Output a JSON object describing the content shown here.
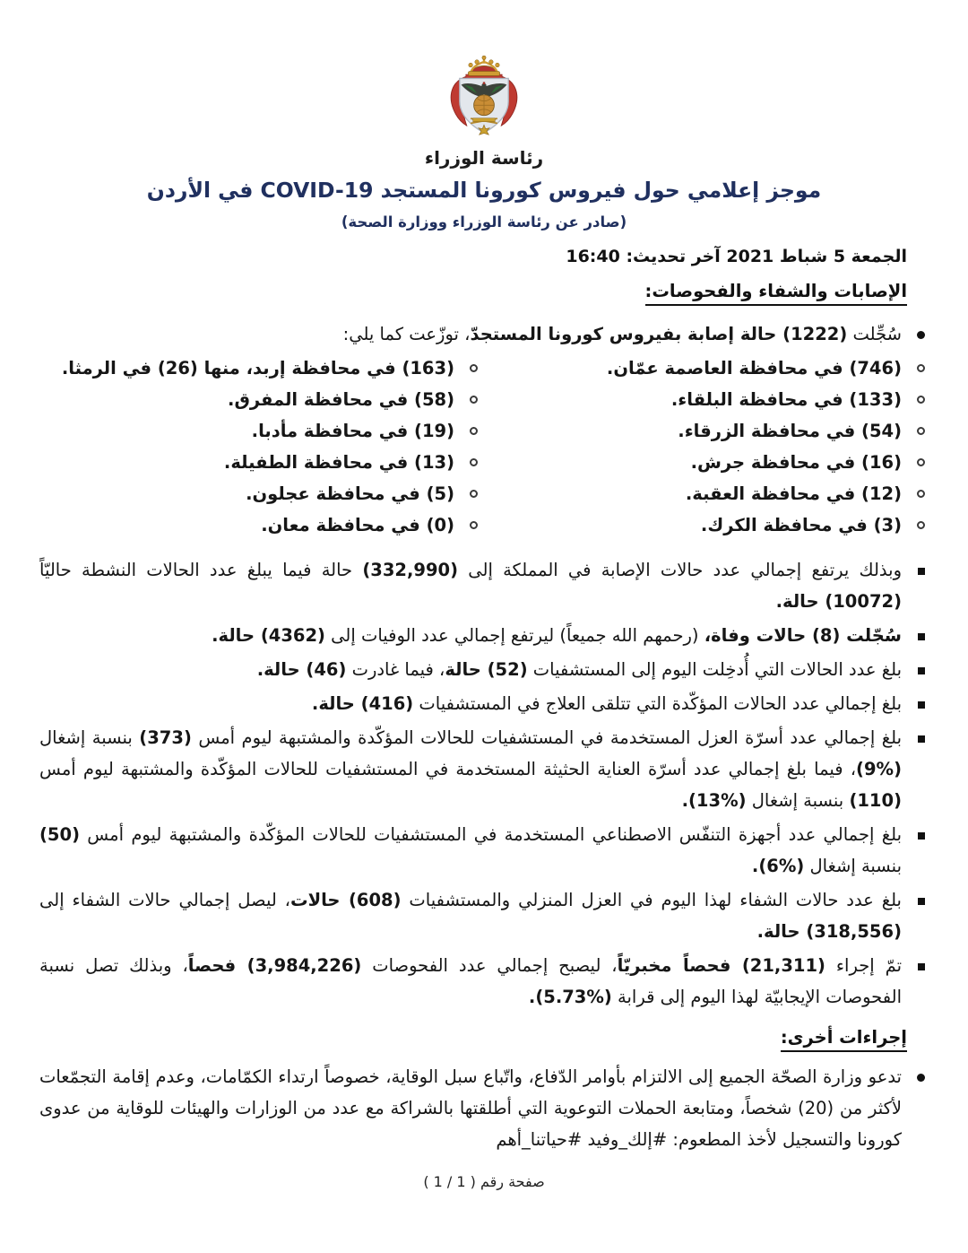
{
  "colors": {
    "title_navy": "#20305f",
    "text_black": "#161616",
    "crest_red": "#bf3a31",
    "crest_gold": "#cf9c33",
    "shield_silver": "#e3e7ec"
  },
  "header": {
    "logo_caption": "رئاسة الوزراء",
    "title": "موجز إعلامي حول فيروس كورونا المستجد COVID-19 في الأردن",
    "subtitle": "(صادر عن رئاسة الوزراء ووزارة الصحة)",
    "date_line": "الجمعة 5 شباط 2021 آخر تحديث: 16:40"
  },
  "cases_section": {
    "heading": "الإصابات والشفاء والفحوصات:",
    "intro": {
      "segments": [
        {
          "t": "سُجِّلت ",
          "b": false
        },
        {
          "t": "(1222) حالة إصابة بفيروس كورونا المستجدّ",
          "b": true
        },
        {
          "t": "، توزّعت كما يلي:",
          "b": false
        }
      ]
    },
    "governorates": {
      "right": [
        "(746) في محافظة العاصمة عمّان.",
        "(133) في محافظة البلقاء.",
        "(54) في محافظة الزرقاء.",
        "(16) في محافظة جرش.",
        "(12) في محافظة العقبة.",
        "(3) في محافظة الكرك."
      ],
      "left": [
        "(163) في محافظة إربد، منها (26) في الرمثا.",
        "(58) في محافظة المفرق.",
        "(19) في محافظة مأدبا.",
        "(13) في محافظة الطفيلة.",
        "(5) في محافظة عجلون.",
        "(0) في محافظة معان."
      ]
    },
    "stats": [
      {
        "segments": [
          {
            "t": "وبذلك يرتفع إجمالي عدد حالات الإصابة في المملكة إلى ",
            "b": false
          },
          {
            "t": "(332,990)",
            "b": true
          },
          {
            "t": " حالة فيما يبلغ عدد الحالات النشطة حاليّاً ",
            "b": false
          },
          {
            "t": "(10072) حالة.",
            "b": true
          }
        ]
      },
      {
        "segments": [
          {
            "t": "سُجّلت (8) حالات وفاة،",
            "b": true
          },
          {
            "t": " (رحمهم الله جميعاً) ليرتفع إجمالي عدد الوفيات إلى ",
            "b": false
          },
          {
            "t": "(4362) حالة.",
            "b": true
          }
        ]
      },
      {
        "segments": [
          {
            "t": "بلغ عدد الحالات التي أُدخِلت اليوم إلى المستشفيات ",
            "b": false
          },
          {
            "t": "(52) حالة",
            "b": true
          },
          {
            "t": "، فيما غادرت ",
            "b": false
          },
          {
            "t": "(46) حالة.",
            "b": true
          }
        ]
      },
      {
        "segments": [
          {
            "t": "بلغ إجمالي عدد الحالات المؤكّدة التي تتلقى العلاج في المستشفيات ",
            "b": false
          },
          {
            "t": "(416) حالة.",
            "b": true
          }
        ]
      },
      {
        "segments": [
          {
            "t": "بلغ إجمالي عدد أسرّة العزل المستخدمة في المستشفيات للحالات المؤكّدة والمشتبهة ليوم أمس ",
            "b": false
          },
          {
            "t": "(373)",
            "b": true
          },
          {
            "t": " بنسبة إشغال ",
            "b": false
          },
          {
            "t": "(%9)",
            "b": true
          },
          {
            "t": "، فيما بلغ إجمالي عدد أسرّة العناية الحثيثة المستخدمة في المستشفيات للحالات المؤكّدة والمشتبهة ليوم أمس ",
            "b": false
          },
          {
            "t": "(110)",
            "b": true
          },
          {
            "t": " بنسبة إشغال ",
            "b": false
          },
          {
            "t": "(%13).",
            "b": true
          }
        ]
      },
      {
        "segments": [
          {
            "t": "بلغ إجمالي عدد أجهزة التنفّس الاصطناعي المستخدمة في المستشفيات للحالات المؤكّدة والمشتبهة ليوم أمس ",
            "b": false
          },
          {
            "t": "(50)",
            "b": true
          },
          {
            "t": " بنسبة إشغال ",
            "b": false
          },
          {
            "t": "(%6).",
            "b": true
          }
        ]
      },
      {
        "segments": [
          {
            "t": "بلغ عدد حالات الشفاء لهذا اليوم في العزل المنزلي والمستشفيات ",
            "b": false
          },
          {
            "t": "(608) حالات",
            "b": true
          },
          {
            "t": "، ليصل إجمالي حالات الشفاء إلى ",
            "b": false
          },
          {
            "t": "(318,556) حالة.",
            "b": true
          }
        ]
      },
      {
        "segments": [
          {
            "t": "تمّ إجراء ",
            "b": false
          },
          {
            "t": "(21,311) فحصاً مخبريّاً",
            "b": true
          },
          {
            "t": "، ليصبح إجمالي عدد الفحوصات ",
            "b": false
          },
          {
            "t": "(3,984,226) فحصاً",
            "b": true
          },
          {
            "t": "، وبذلك تصل نسبة الفحوصات الإيجابيّة لهذا اليوم إلى قرابة ",
            "b": false
          },
          {
            "t": "(%5.73).",
            "b": true
          }
        ]
      }
    ]
  },
  "measures_section": {
    "heading": "إجراءات أخرى:",
    "advisory": {
      "segments": [
        {
          "t": "تدعو وزارة الصحّة الجميع إلى الالتزام بأوامر الدّفاع، واتّباع سبل الوقاية، خصوصاً ارتداء الكمّامات، وعدم إقامة التجمّعات لأكثر من (20) شخصاً، ومتابعة الحملات التوعوية التي أطلقتها بالشراكة مع عدد من الوزارات والهيئات للوقاية من عدوى كورونا والتسجيل لأخذ المطعوم: #إلك_وفيد #حياتنا_أهم",
          "b": false
        }
      ]
    }
  },
  "footer": {
    "page_label": "صفحة رقم ( 1 / 1 )"
  }
}
